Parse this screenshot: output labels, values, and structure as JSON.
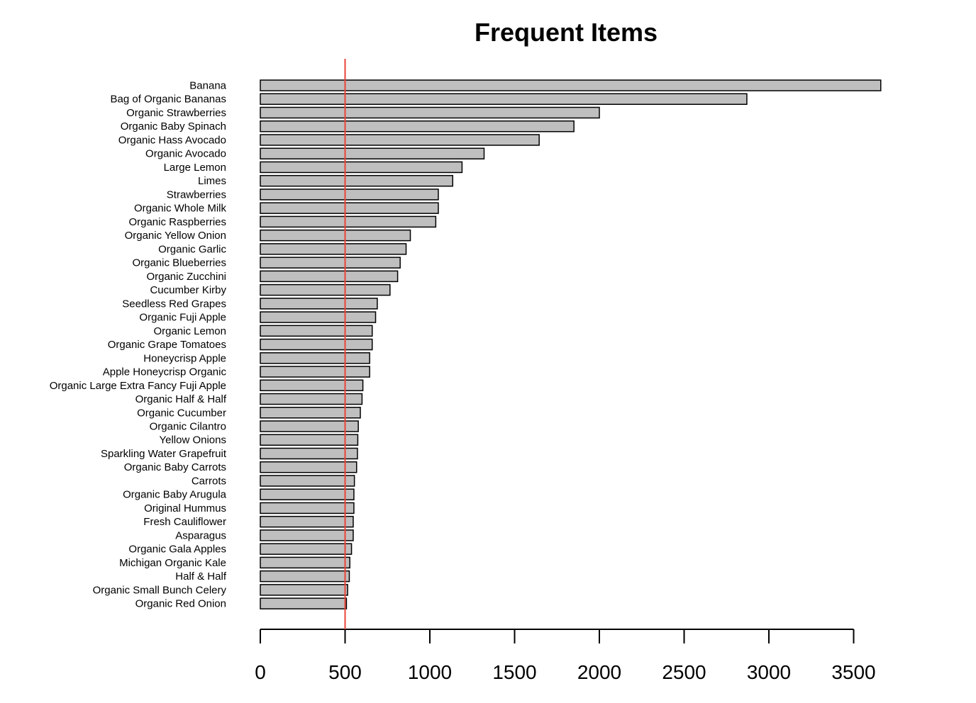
{
  "chart_data": {
    "type": "bar",
    "orientation": "horizontal",
    "title": "Frequent Items",
    "xlabel": "",
    "ylabel": "",
    "xlim": [
      0,
      3700
    ],
    "xticks": [
      0,
      500,
      1000,
      1500,
      2000,
      2500,
      3000,
      3500
    ],
    "reference_line": {
      "value": 500,
      "color": "#e8433a"
    },
    "bar_fill": "#bfbfbf",
    "bar_stroke": "#000000",
    "grid": false,
    "categories": [
      "Banana",
      "Bag of Organic Bananas",
      "Organic Strawberries",
      "Organic Baby Spinach",
      "Organic Hass Avocado",
      "Organic Avocado",
      "Large Lemon",
      "Limes",
      "Strawberries",
      "Organic Whole Milk",
      "Organic Raspberries",
      "Organic Yellow Onion",
      "Organic Garlic",
      "Organic Blueberries",
      "Organic Zucchini",
      "Cucumber Kirby",
      "Seedless Red Grapes",
      "Organic Fuji Apple",
      "Organic Lemon",
      "Organic Grape Tomatoes",
      "Honeycrisp Apple",
      "Apple Honeycrisp Organic",
      "Organic Large Extra Fancy Fuji Apple",
      "Organic Half & Half",
      "Organic Cucumber",
      "Organic Cilantro",
      "Yellow Onions",
      "Sparkling Water Grapefruit",
      "Organic Baby Carrots",
      "Carrots",
      "Organic Baby Arugula",
      "Original Hummus",
      "Fresh Cauliflower",
      "Asparagus",
      "Organic Gala Apples",
      "Michigan Organic Kale",
      "Half & Half",
      "Organic Small Bunch Celery",
      "Organic Red Onion"
    ],
    "values": [
      3660,
      2870,
      2000,
      1850,
      1645,
      1320,
      1190,
      1135,
      1050,
      1050,
      1035,
      885,
      860,
      825,
      810,
      765,
      690,
      680,
      660,
      660,
      645,
      645,
      605,
      600,
      590,
      578,
      575,
      573,
      568,
      555,
      552,
      552,
      548,
      548,
      538,
      528,
      525,
      515,
      508
    ]
  }
}
